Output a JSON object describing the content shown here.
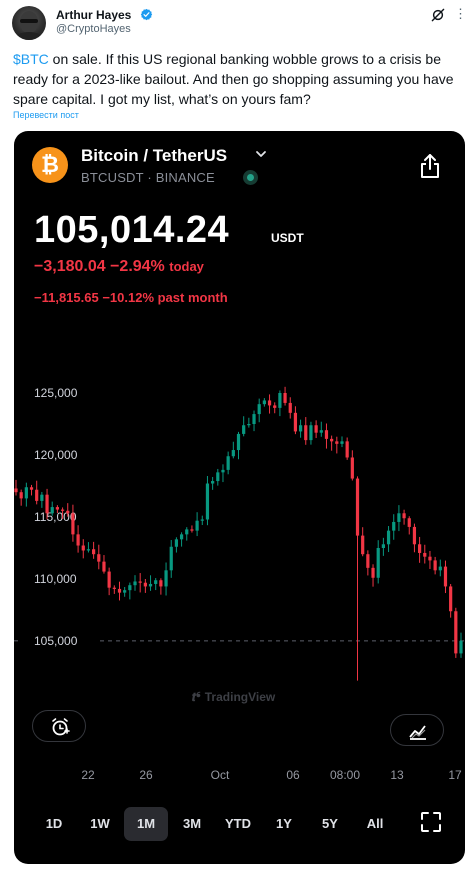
{
  "tweet": {
    "author_name": "Arthur Hayes",
    "author_handle": "@CryptoHayes",
    "cashtag": "$BTC",
    "text_rest": " on sale. If this US regional banking wobble grows to a crisis be ready for a 2023-like bailout. And then go shopping assuming you have spare capital. I got my list, what’s on yours fam?",
    "translate_link": "Перевести пост"
  },
  "card": {
    "pair_title": "Bitcoin / TetherUS",
    "pair_subtitle": "BTCUSDT · BINANCE",
    "price": "105,014.24",
    "price_unit": "USDT",
    "change_day_values": "−3,180.04 −2.94%",
    "change_day_label": "today",
    "change_month": "−11,815.65 −10.12% past month",
    "watermark": "TradingView",
    "x_labels": [
      "22",
      "26",
      "Oct",
      "06",
      "08:00",
      "13",
      "17"
    ],
    "timeframes": [
      "1D",
      "1W",
      "1M",
      "3M",
      "YTD",
      "1Y",
      "5Y",
      "All"
    ],
    "active_timeframe": "1M",
    "colors": {
      "up": "#089981",
      "down": "#f23645",
      "bg": "#000000",
      "accent_link": "#1d9bf0",
      "logo": "#f7931a"
    },
    "icons": [
      "btc-logo-icon",
      "chevron-down-icon",
      "share-icon",
      "alarm-add-icon",
      "chart-compare-icon",
      "fullscreen-icon",
      "verified-badge-icon",
      "grok-icon",
      "more-icon"
    ]
  },
  "chart_data": {
    "type": "candlestick",
    "y_tick_labels": [
      "125,000",
      "120,000",
      "115,000",
      "110,000",
      "105,000"
    ],
    "ylim": [
      100000,
      128000
    ],
    "current_price_line": 105014.24,
    "x_labels": [
      "22",
      "26",
      "Oct",
      "06",
      "08:00",
      "13",
      "17"
    ],
    "close_series": [
      117000,
      116500,
      117400,
      117200,
      116300,
      116800,
      115300,
      115800,
      115600,
      115500,
      115300,
      113600,
      112700,
      112300,
      112400,
      112000,
      111400,
      110600,
      109300,
      109200,
      108900,
      109100,
      109500,
      109800,
      109700,
      109400,
      109600,
      109900,
      109400,
      110700,
      112600,
      113200,
      113600,
      114000,
      113900,
      114700,
      114800,
      117700,
      117900,
      118600,
      118800,
      119900,
      120400,
      121700,
      122400,
      122500,
      123300,
      124100,
      124400,
      124000,
      123800,
      125000,
      124200,
      123400,
      121900,
      122400,
      121200,
      122400,
      121800,
      122000,
      121300,
      121100,
      120900,
      121100,
      119800,
      118100,
      113500,
      112000,
      110900,
      110100,
      112500,
      112800,
      113900,
      114600,
      115300,
      114900,
      114200,
      112800,
      112100,
      111800,
      111500,
      110700,
      111000,
      109400,
      107400,
      104000,
      105014
    ]
  }
}
